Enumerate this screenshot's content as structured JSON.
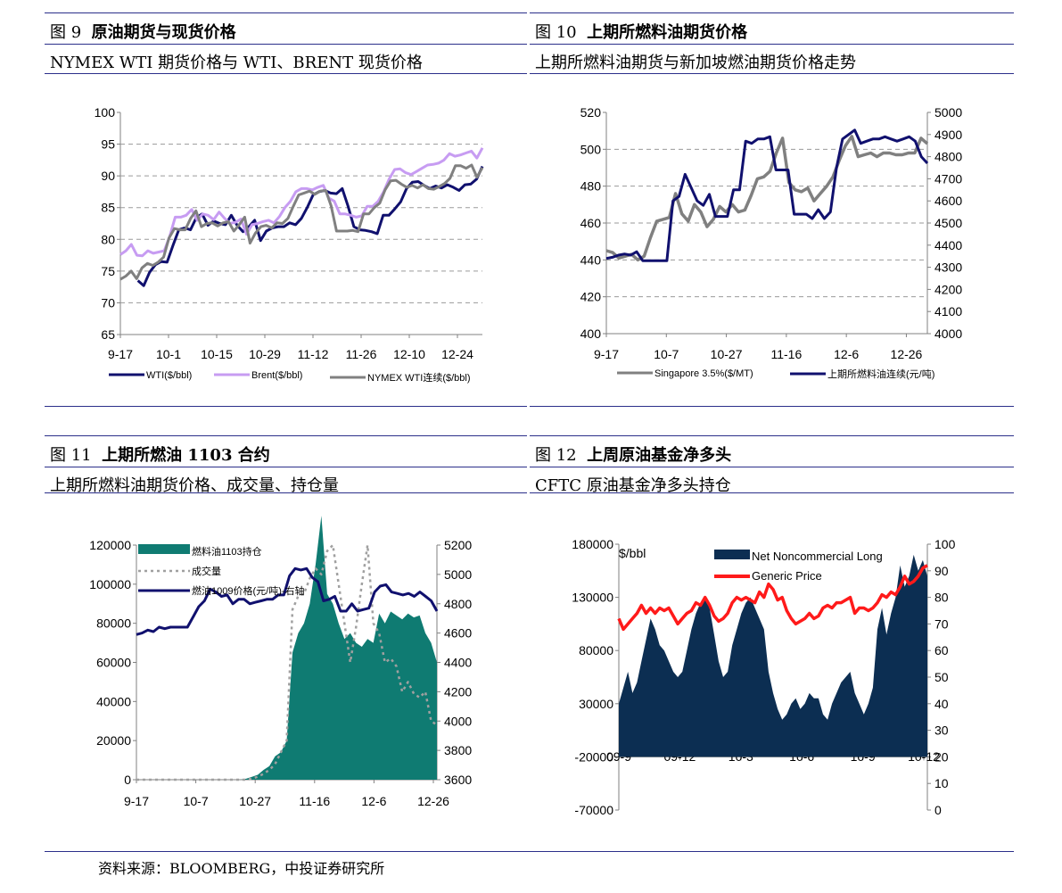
{
  "footer": {
    "source": "资料来源：BLOOMBERG，中投证券研究所"
  },
  "panels": [
    {
      "fig": "图 9",
      "title": "原油期货与现货价格",
      "subtitle": "NYMEX WTI 期货价格与 WTI、BRENT 现货价格"
    },
    {
      "fig": "图 10",
      "title": "上期所燃料油期货价格",
      "subtitle": "上期所燃料油期货与新加坡燃油期货价格走势"
    },
    {
      "fig": "图 11",
      "title_pre": "上期所燃油 ",
      "title_bold": "1103",
      "title_post": " 合约",
      "subtitle": "上期所燃料油期货价格、成交量、持仓量"
    },
    {
      "fig": "图 12",
      "title": "上周原油基金净多头",
      "subtitle": "CFTC  原油基金净多头持仓"
    }
  ],
  "chart_data": [
    {
      "type": "line",
      "x_ticks": [
        "9-17",
        "10-1",
        "10-15",
        "10-29",
        "11-12",
        "11-26",
        "12-10",
        "12-24"
      ],
      "y_ticks": [
        "100",
        "95",
        "90",
        "85",
        "80",
        "75",
        "70",
        "65"
      ],
      "ylim": [
        65,
        100
      ],
      "grid": true,
      "legend": "bottom",
      "series": [
        {
          "name": "WTI($/bbl)",
          "color": "#10106e",
          "values": [
            null,
            null,
            null,
            73.5,
            72.7,
            74.8,
            76.0,
            76.5,
            76.4,
            79.0,
            81.5,
            81.8,
            81.5,
            83.4,
            84.0,
            82.2,
            82.9,
            82.5,
            82.3,
            83.8,
            82.2,
            81.2,
            82.0,
            83.0,
            79.8,
            81.3,
            81.8,
            82.0,
            82.0,
            82.6,
            82.3,
            83.3,
            85.0,
            87.0,
            87.5,
            87.7,
            87.3,
            87.2,
            88.0,
            85.2,
            82.0,
            81.5,
            81.4,
            81.2,
            80.9,
            83.8,
            83.8,
            84.8,
            85.9,
            88.0,
            89.0,
            89.1,
            88.5,
            88.0,
            88.4,
            88.1,
            88.6,
            88.2,
            87.7,
            88.6,
            88.7,
            89.5,
            91.5
          ]
        },
        {
          "name": "Brent($/bbl)",
          "color": "#c79cf2",
          "values": [
            77.6,
            78.2,
            79.2,
            77.5,
            77.4,
            78.2,
            77.8,
            78.0,
            78.2,
            80.5,
            83.5,
            83.5,
            83.8,
            84.7,
            83.0,
            84.0,
            83.8,
            83.1,
            84.3,
            83.3,
            82.5,
            82.7,
            83.2,
            80.8,
            82.3,
            82.5,
            82.8,
            83.0,
            82.6,
            83.6,
            85.0,
            86.0,
            87.5,
            88.0,
            88.0,
            87.8,
            88.2,
            88.5,
            86.5,
            86.0,
            84.0,
            84.0,
            83.8,
            83.5,
            83.7,
            85.2,
            85.2,
            86.0,
            87.5,
            89.5,
            91.0,
            91.1,
            90.5,
            90.2,
            90.7,
            91.2,
            91.7,
            91.8,
            92.0,
            92.5,
            93.5,
            93.1,
            93.3,
            93.6,
            93.9,
            92.8,
            94.4
          ]
        },
        {
          "name": "NYMEX WTI连续($/bbl)",
          "color": "#808080",
          "values": [
            73.7,
            74.2,
            75.0,
            73.8,
            75.5,
            76.2,
            75.9,
            76.4,
            77.2,
            80.2,
            81.7,
            81.5,
            81.5,
            83.3,
            84.5,
            82.0,
            82.5,
            82.6,
            82.1,
            82.6,
            82.8,
            81.3,
            82.3,
            83.5,
            79.4,
            81.0,
            82.0,
            82.2,
            81.8,
            82.6,
            82.5,
            83.3,
            85.2,
            87.0,
            87.3,
            87.6,
            87.1,
            87.6,
            87.7,
            85.3,
            81.3,
            81.3,
            81.3,
            81.4,
            81.2,
            84.0,
            84.0,
            85.0,
            85.7,
            87.8,
            89.2,
            89.3,
            88.7,
            88.2,
            88.5,
            88.1,
            88.6,
            88.0,
            87.9,
            88.3,
            88.8,
            89.6,
            91.6,
            91.6,
            91.2,
            91.7,
            89.8,
            91.3
          ]
        }
      ]
    },
    {
      "type": "line",
      "x_ticks": [
        "9-17",
        "10-7",
        "10-27",
        "11-16",
        "12-6",
        "12-26"
      ],
      "y_ticks": [
        "520",
        "500",
        "480",
        "460",
        "440",
        "420",
        "400"
      ],
      "y2_ticks": [
        "5000",
        "4900",
        "4800",
        "4700",
        "4600",
        "4500",
        "4400",
        "4300",
        "4200",
        "4100",
        "4000"
      ],
      "ylim": [
        400,
        520
      ],
      "y2lim": [
        4000,
        5000
      ],
      "grid": true,
      "legend": "bottom",
      "series": [
        {
          "name": "Singapore 3.5%($/MT)",
          "axis": "left",
          "color": "#808080",
          "values": [
            445,
            444,
            441,
            442,
            443,
            440,
            442,
            452,
            461,
            462,
            463,
            476,
            465,
            461,
            470,
            466,
            458,
            462,
            469,
            466,
            470,
            466,
            467,
            475,
            484,
            485,
            488,
            498,
            506,
            482,
            478,
            477,
            479,
            472,
            476,
            480,
            485,
            494,
            502,
            507,
            496,
            497,
            498,
            496,
            498,
            498,
            497,
            497,
            498,
            498,
            506,
            503
          ]
        },
        {
          "name": "上期所燃料油连续(元/吨)",
          "axis": "right",
          "color": "#10106e",
          "values": [
            4340,
            4345,
            4355,
            4360,
            4355,
            4370,
            4330,
            4330,
            4330,
            4330,
            4330,
            4600,
            4620,
            4720,
            4660,
            4600,
            4580,
            4630,
            4530,
            4530,
            4530,
            4650,
            4650,
            4870,
            4860,
            4880,
            4880,
            4890,
            4740,
            4740,
            4740,
            4540,
            4540,
            4540,
            4520,
            4560,
            4520,
            4550,
            4750,
            4880,
            4900,
            4920,
            4860,
            4870,
            4880,
            4880,
            4890,
            4880,
            4870,
            4880,
            4890,
            4870,
            4800,
            4770
          ]
        }
      ]
    },
    {
      "type": "area",
      "x_ticks": [
        "9-17",
        "10-7",
        "10-27",
        "11-16",
        "12-6",
        "12-26"
      ],
      "y_ticks": [
        "120000",
        "100000",
        "80000",
        "60000",
        "40000",
        "20000",
        "0"
      ],
      "y2_ticks": [
        "5200",
        "5000",
        "4800",
        "4600",
        "4400",
        "4200",
        "4000",
        "3800",
        "3600"
      ],
      "ylim": [
        0,
        120000
      ],
      "y2lim": [
        3600,
        5200
      ],
      "legend": "top-left",
      "series": [
        {
          "name": "燃料油1103持仓",
          "axis": "left",
          "color": "#0f7b72",
          "values": [
            0,
            0,
            0,
            0,
            0,
            0,
            0,
            0,
            0,
            0,
            0,
            0,
            0,
            0,
            0,
            0,
            0,
            0,
            0,
            500,
            1500,
            2500,
            5000,
            7000,
            12000,
            14000,
            20000,
            65000,
            75000,
            80000,
            90000,
            110000,
            135000,
            95000,
            90000,
            80000,
            72000,
            75000,
            70000,
            68000,
            72000,
            70000,
            85000,
            80000,
            86000,
            84000,
            82000,
            85000,
            83000,
            84000,
            75000,
            70000,
            60000
          ]
        },
        {
          "name": "成交量",
          "axis": "left",
          "color": "#a0a0a0",
          "values": [
            0,
            0,
            0,
            0,
            0,
            0,
            0,
            0,
            0,
            0,
            0,
            0,
            0,
            0,
            0,
            0,
            0,
            0,
            0,
            0,
            500,
            1500,
            3000,
            5000,
            8000,
            14000,
            20000,
            87000,
            94000,
            95000,
            103000,
            108000,
            105000,
            117000,
            120000,
            100000,
            80000,
            60000,
            78000,
            100000,
            120000,
            80000,
            75000,
            60000,
            62000,
            58000,
            45000,
            50000,
            44000,
            42000,
            45000,
            30000,
            28000
          ]
        },
        {
          "name": "燃油1009价格(元/吨)-右轴",
          "axis": "right",
          "color": "#10106e",
          "values": [
            4590,
            4600,
            4620,
            4610,
            4640,
            4630,
            4640,
            4640,
            4640,
            4640,
            4710,
            4780,
            4820,
            4900,
            4880,
            4850,
            4860,
            4800,
            4830,
            4830,
            4800,
            4810,
            4820,
            4830,
            4830,
            4860,
            4860,
            4990,
            5040,
            5030,
            5040,
            4980,
            4950,
            4820,
            4830,
            4850,
            4750,
            4750,
            4800,
            4750,
            4760,
            4770,
            4880,
            4920,
            4930,
            4880,
            4870,
            4860,
            4870,
            4850,
            4880,
            4850,
            4820,
            4750
          ]
        }
      ]
    },
    {
      "type": "area",
      "x_ticks": [
        "09-9",
        "09-12",
        "10-3",
        "10-6",
        "10-9",
        "10-12"
      ],
      "y_ticks": [
        "180000",
        "130000",
        "80000",
        "30000",
        "-20000",
        "-70000"
      ],
      "y2_ticks": [
        "100",
        "90",
        "80",
        "70",
        "60",
        "50",
        "40",
        "30",
        "20",
        "10",
        "0"
      ],
      "ylabel": "$/bbl",
      "ylim": [
        -70000,
        180000
      ],
      "y2lim": [
        0,
        100
      ],
      "legend": "top-center",
      "series": [
        {
          "name": "Net Noncommercial Long",
          "axis": "left",
          "color": "#0c2e52",
          "values": [
            30000,
            45000,
            60000,
            40000,
            50000,
            70000,
            90000,
            110000,
            100000,
            85000,
            80000,
            70000,
            60000,
            55000,
            60000,
            80000,
            100000,
            115000,
            125000,
            130000,
            120000,
            95000,
            70000,
            55000,
            60000,
            85000,
            100000,
            115000,
            125000,
            130000,
            120000,
            110000,
            100000,
            60000,
            40000,
            25000,
            15000,
            20000,
            30000,
            35000,
            25000,
            30000,
            40000,
            35000,
            35000,
            20000,
            15000,
            30000,
            40000,
            50000,
            55000,
            60000,
            40000,
            30000,
            20000,
            30000,
            45000,
            100000,
            120000,
            95000,
            115000,
            130000,
            160000,
            140000,
            150000,
            170000,
            155000,
            165000,
            150000
          ]
        },
        {
          "name": "Generic Price",
          "axis": "right",
          "color": "#ff1a1a",
          "values": [
            72,
            68,
            70,
            72,
            74,
            77,
            74,
            76,
            74,
            76,
            75,
            76,
            73,
            70,
            72,
            74,
            75,
            78,
            77,
            80,
            77,
            73,
            71,
            72,
            74,
            78,
            80,
            79,
            80,
            79,
            78,
            82,
            80,
            85,
            83,
            79,
            80,
            75,
            72,
            70,
            71,
            72,
            74,
            72,
            73,
            76,
            77,
            76,
            78,
            78,
            79,
            80,
            74,
            76,
            76,
            75,
            76,
            78,
            81,
            80,
            82,
            81,
            84,
            88,
            85,
            86,
            88,
            91,
            92
          ]
        }
      ]
    }
  ]
}
